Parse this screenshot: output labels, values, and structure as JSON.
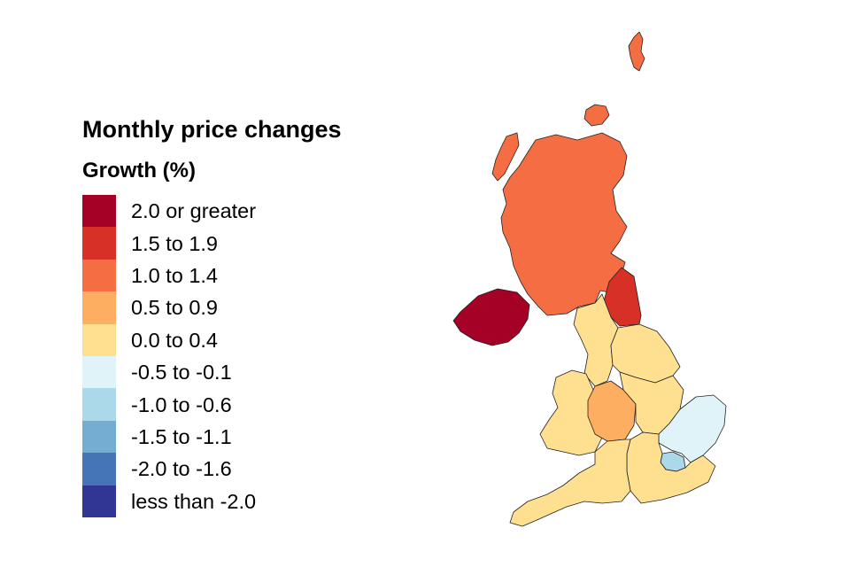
{
  "legend": {
    "title": "Monthly price changes",
    "subtitle": "Growth (%)",
    "bins": [
      {
        "label": "2.0 or greater",
        "color": "#a50026"
      },
      {
        "label": "1.5 to 1.9",
        "color": "#d73027"
      },
      {
        "label": "1.0 to 1.4",
        "color": "#f46d43"
      },
      {
        "label": "0.5 to 0.9",
        "color": "#fdae61"
      },
      {
        "label": "0.0 to 0.4",
        "color": "#fee090"
      },
      {
        "label": "-0.5 to -0.1",
        "color": "#e0f3f8"
      },
      {
        "label": "-1.0 to -0.6",
        "color": "#abd9e9"
      },
      {
        "label": "-1.5 to -1.1",
        "color": "#74add1"
      },
      {
        "label": "-2.0 to -1.6",
        "color": "#4575b4"
      },
      {
        "label": "less than -2.0",
        "color": "#313695"
      }
    ]
  },
  "regions": [
    {
      "name": "Scotland",
      "bin": 2
    },
    {
      "name": "Northern Ireland",
      "bin": 0
    },
    {
      "name": "North East",
      "bin": 1
    },
    {
      "name": "North West",
      "bin": 4
    },
    {
      "name": "Yorkshire and The Humber",
      "bin": 4
    },
    {
      "name": "West Midlands",
      "bin": 3
    },
    {
      "name": "East Midlands",
      "bin": 4
    },
    {
      "name": "East of England",
      "bin": 5
    },
    {
      "name": "London",
      "bin": 6
    },
    {
      "name": "South East",
      "bin": 4
    },
    {
      "name": "South West",
      "bin": 4
    },
    {
      "name": "Wales",
      "bin": 4
    }
  ]
}
